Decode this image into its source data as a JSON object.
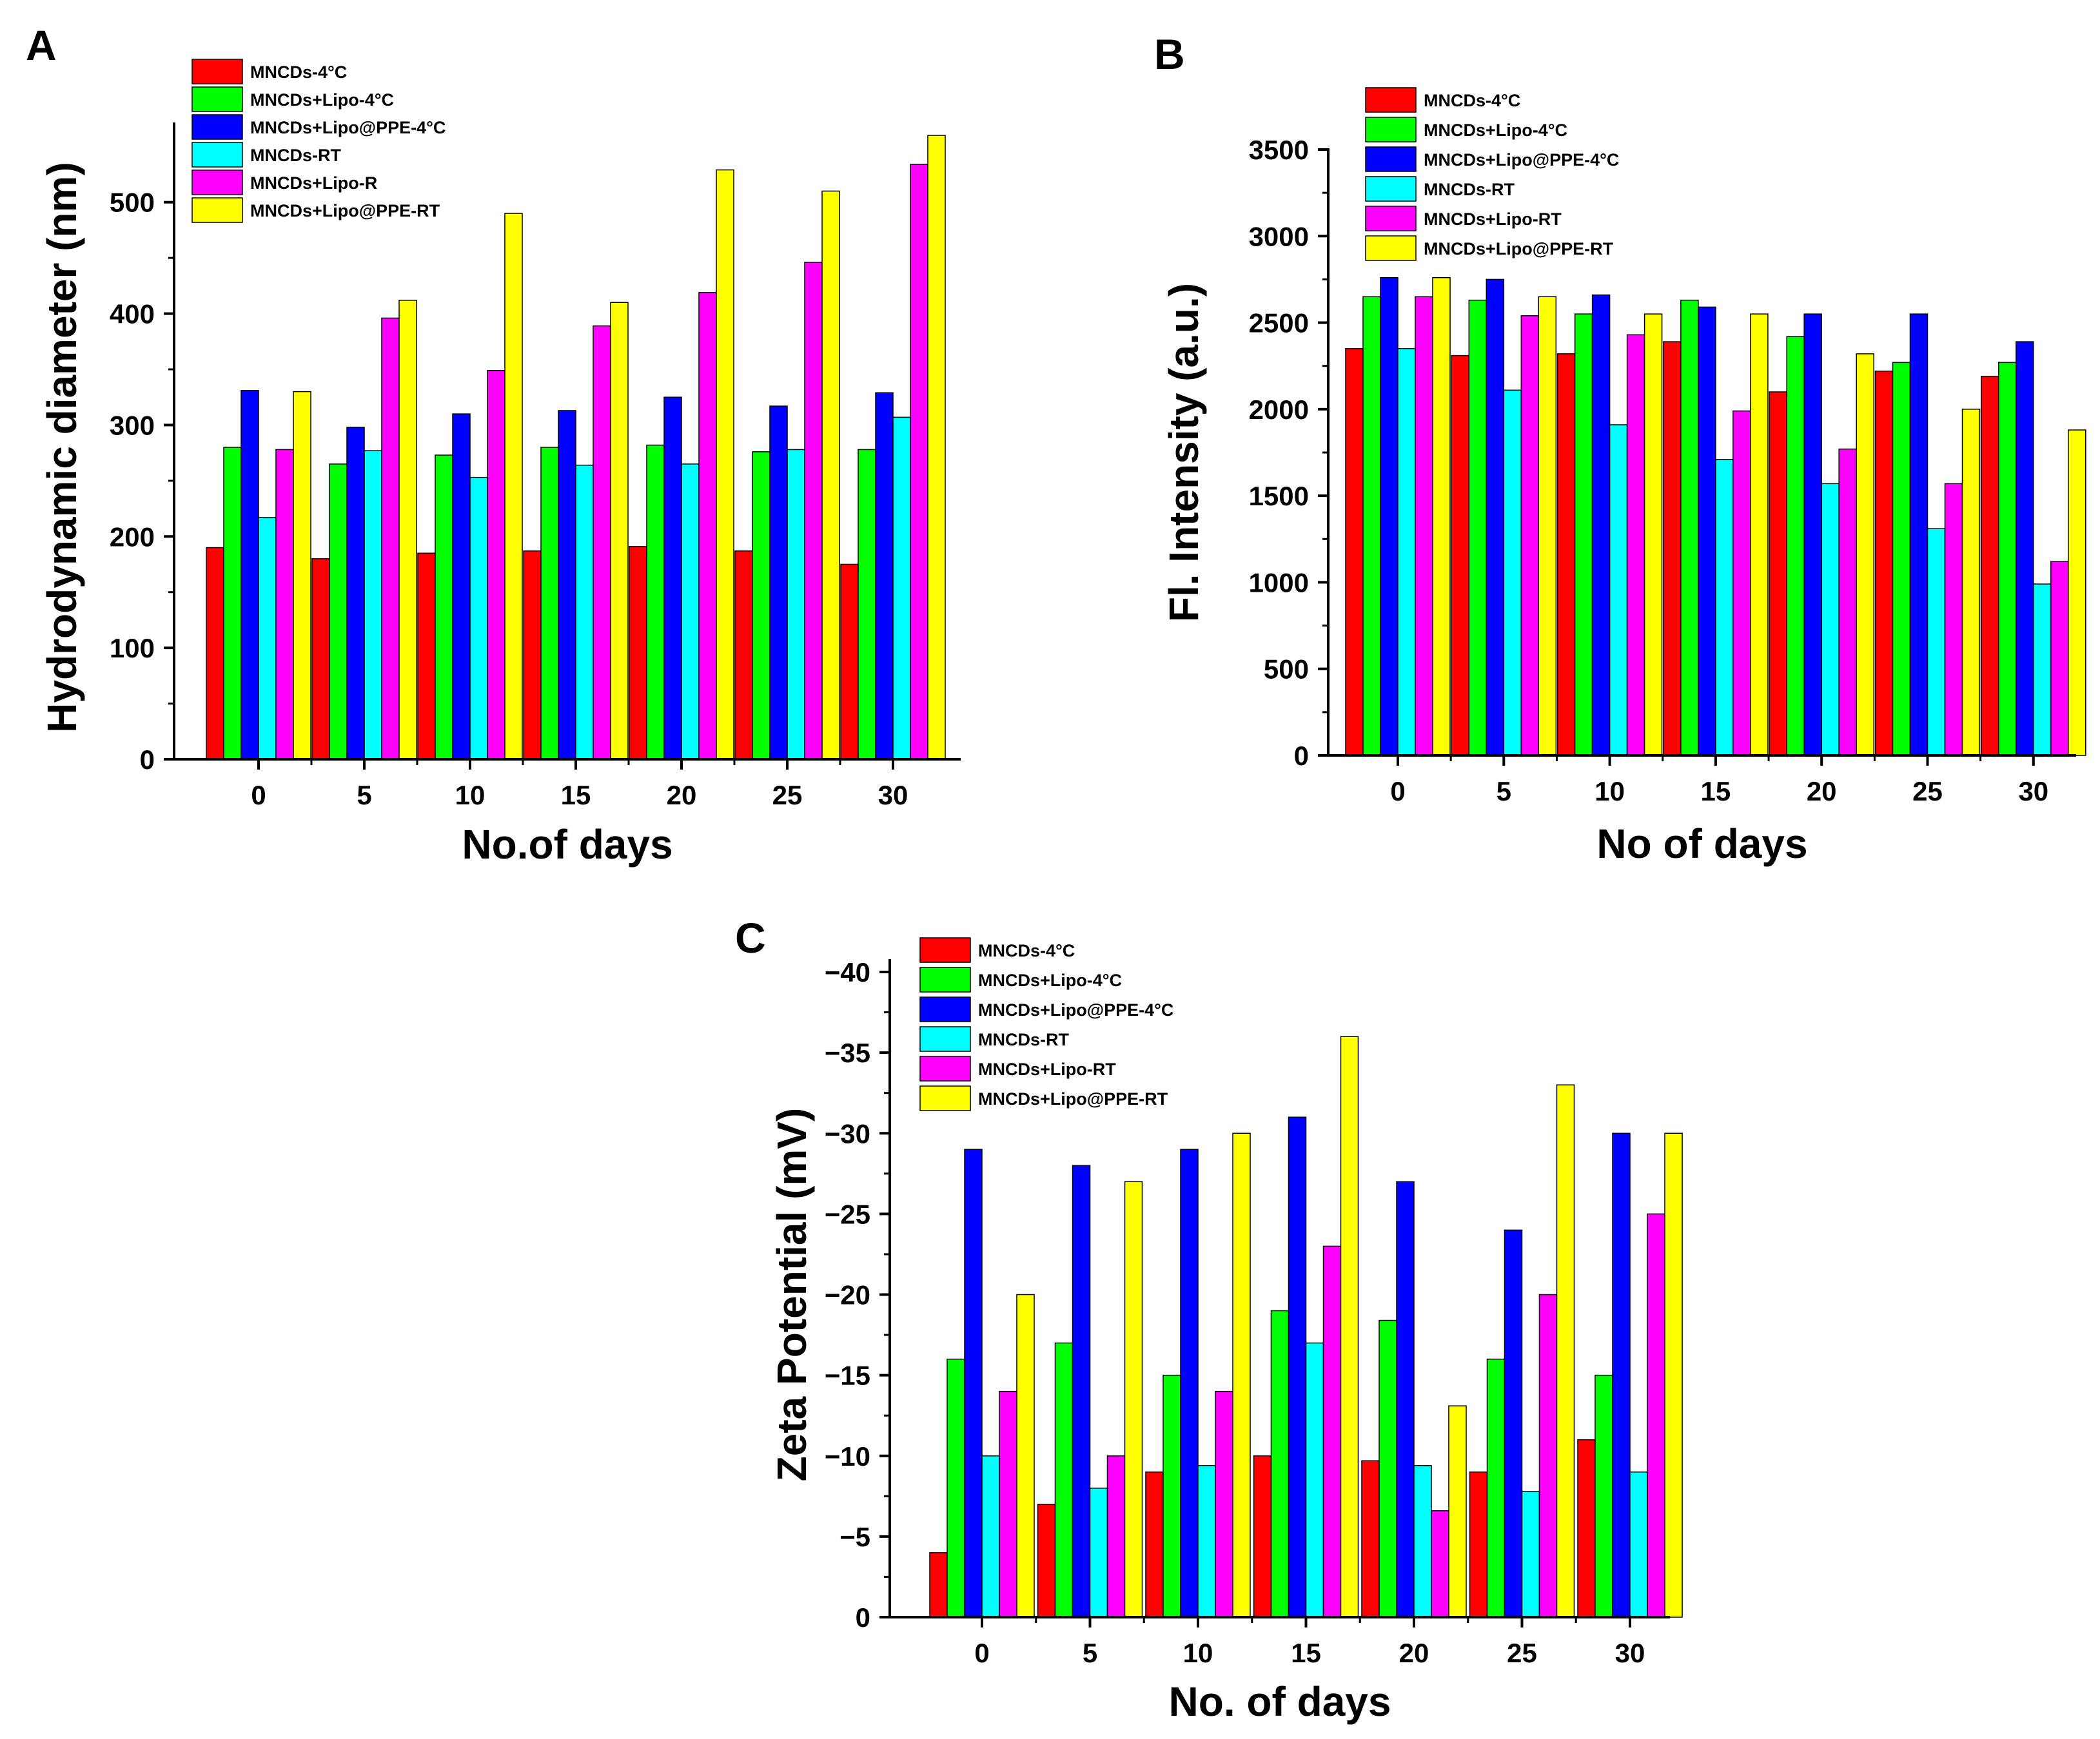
{
  "figure": {
    "colors": {
      "MNCDs-4C": "#ff0000",
      "MNCDs-Lipo-4C": "#00ff00",
      "MNCDs-Lipo-PPE-4C": "#0000ff",
      "MNCDs-RT": "#00ffff",
      "MNCDs-Lipo-RT": "#ff00ff",
      "MNCDs-Lipo-PPE-RT": "#ffff00"
    }
  },
  "chart_data": [
    {
      "panel": "A",
      "type": "bar",
      "title": "",
      "xlabel": "No.of days",
      "ylabel": "Hydrodynamic diameter (nm)",
      "categories": [
        "0",
        "5",
        "10",
        "15",
        "20",
        "25",
        "30"
      ],
      "ylim": [
        0,
        560
      ],
      "yticks": [
        0,
        100,
        200,
        300,
        400,
        500
      ],
      "ytick_labels": [
        "0",
        "100",
        "200",
        "300",
        "400",
        "500"
      ],
      "legend_position": "top-left",
      "series": [
        {
          "name": "MNCDs-4°C",
          "color_key": "MNCDs-4C",
          "values": [
            190,
            180,
            185,
            187,
            191,
            187,
            175
          ]
        },
        {
          "name": "MNCDs+Lipo-4°C",
          "color_key": "MNCDs-Lipo-4C",
          "values": [
            280,
            265,
            273,
            280,
            282,
            276,
            278
          ]
        },
        {
          "name": "MNCDs+Lipo@PPE-4°C",
          "color_key": "MNCDs-Lipo-PPE-4C",
          "values": [
            331,
            298,
            310,
            313,
            325,
            317,
            329
          ]
        },
        {
          "name": "MNCDs-RT",
          "color_key": "MNCDs-RT",
          "values": [
            217,
            277,
            253,
            264,
            265,
            278,
            307
          ]
        },
        {
          "name": "MNCDs+Lipo-R",
          "color_key": "MNCDs-Lipo-RT",
          "values": [
            278,
            396,
            349,
            389,
            419,
            446,
            534
          ]
        },
        {
          "name": "MNCDs+Lipo@PPE-RT",
          "color_key": "MNCDs-Lipo-PPE-RT",
          "values": [
            330,
            412,
            490,
            410,
            529,
            510,
            560
          ]
        }
      ]
    },
    {
      "panel": "B",
      "type": "bar",
      "title": "",
      "xlabel": "No of days",
      "ylabel": "Fl. Intensity (a.u.)",
      "categories": [
        "0",
        "5",
        "10",
        "15",
        "20",
        "25",
        "30"
      ],
      "ylim": [
        0,
        3500
      ],
      "yticks": [
        0,
        500,
        1000,
        1500,
        2000,
        2500,
        3000,
        3500
      ],
      "ytick_labels": [
        "0",
        "500",
        "1000",
        "1500",
        "2000",
        "2500",
        "3000",
        "3500"
      ],
      "legend_position": "top-left",
      "series": [
        {
          "name": "MNCDs-4°C",
          "color_key": "MNCDs-4C",
          "values": [
            2350,
            2310,
            2320,
            2390,
            2100,
            2220,
            2190
          ]
        },
        {
          "name": "MNCDs+Lipo-4°C",
          "color_key": "MNCDs-Lipo-4C",
          "values": [
            2650,
            2630,
            2550,
            2630,
            2420,
            2270,
            2270
          ]
        },
        {
          "name": "MNCDs+Lipo@PPE-4°C",
          "color_key": "MNCDs-Lipo-PPE-4C",
          "values": [
            2760,
            2750,
            2660,
            2590,
            2550,
            2550,
            2390
          ]
        },
        {
          "name": "MNCDs-RT",
          "color_key": "MNCDs-RT",
          "values": [
            2350,
            2110,
            1910,
            1710,
            1570,
            1310,
            990
          ]
        },
        {
          "name": "MNCDs+Lipo-RT",
          "color_key": "MNCDs-Lipo-RT",
          "values": [
            2650,
            2540,
            2430,
            1990,
            1770,
            1570,
            1120
          ]
        },
        {
          "name": "MNCDs+Lipo@PPE-RT",
          "color_key": "MNCDs-Lipo-PPE-RT",
          "values": [
            2760,
            2650,
            2550,
            2550,
            2320,
            2000,
            1880
          ]
        }
      ]
    },
    {
      "panel": "C",
      "type": "bar",
      "title": "",
      "xlabel": "No. of days",
      "ylabel": "Zeta Potential (mV)",
      "categories": [
        "0",
        "5",
        "10",
        "15",
        "20",
        "25",
        "30"
      ],
      "ylim": [
        0,
        -40
      ],
      "yticks": [
        0,
        -5,
        -10,
        -15,
        -20,
        -25,
        -30,
        -35,
        -40
      ],
      "ytick_labels": [
        "0",
        "−5",
        "−10",
        "−15",
        "−20",
        "−25",
        "−30",
        "−35",
        "−40"
      ],
      "legend_position": "top-left",
      "series": [
        {
          "name": "MNCDs-4°C",
          "color_key": "MNCDs-4C",
          "values": [
            -4,
            -7,
            -9,
            -10,
            -9.7,
            -9,
            -11
          ]
        },
        {
          "name": "MNCDs+Lipo-4°C",
          "color_key": "MNCDs-Lipo-4C",
          "values": [
            -16,
            -17,
            -15,
            -19,
            -18.4,
            -16,
            -15
          ]
        },
        {
          "name": "MNCDs+Lipo@PPE-4°C",
          "color_key": "MNCDs-Lipo-PPE-4C",
          "values": [
            -29,
            -28,
            -29,
            -31,
            -27,
            -24,
            -30
          ]
        },
        {
          "name": "MNCDs-RT",
          "color_key": "MNCDs-RT",
          "values": [
            -10,
            -8,
            -9.4,
            -17,
            -9.4,
            -7.8,
            -9
          ]
        },
        {
          "name": "MNCDs+Lipo-RT",
          "color_key": "MNCDs-Lipo-RT",
          "values": [
            -14,
            -10,
            -14,
            -23,
            -6.6,
            -20,
            -25
          ]
        },
        {
          "name": "MNCDs+Lipo@PPE-RT",
          "color_key": "MNCDs-Lipo-PPE-RT",
          "values": [
            -20,
            -27,
            -30,
            -36,
            -13.1,
            -33,
            -30
          ]
        }
      ]
    }
  ]
}
